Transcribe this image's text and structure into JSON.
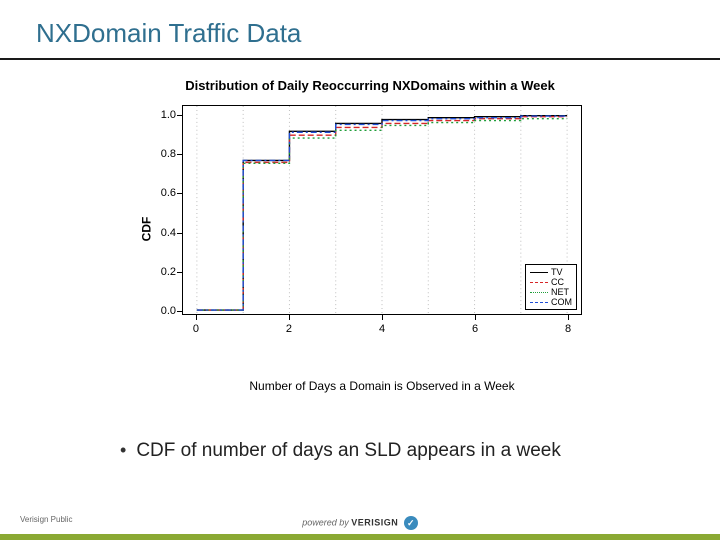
{
  "title": "NXDomain Traffic Data",
  "bullet": "CDF of number of days an SLD appears in a week",
  "footer": {
    "left": "Verisign Public",
    "powered": "powered by",
    "brand": "VERISIGN",
    "badge": "✓"
  },
  "chart": {
    "type": "line-step",
    "title": "Distribution of Daily Reoccurring NXDomains within a Week",
    "xlabel": "Number of Days a Domain is Observed in a Week",
    "ylabel": "CDF",
    "xlim": [
      -0.3,
      8.3
    ],
    "ylim": [
      -0.02,
      1.05
    ],
    "xticks": [
      0,
      2,
      4,
      6,
      8
    ],
    "yticks": [
      0.0,
      0.2,
      0.4,
      0.6,
      0.8,
      1.0
    ],
    "ytick_labels": [
      "0.0",
      "0.2",
      "0.4",
      "0.6",
      "0.8",
      "1.0"
    ],
    "grid": {
      "vertical_at": [
        0,
        1,
        2,
        3,
        4,
        5,
        6,
        7,
        8
      ],
      "color": "#bfbfbf",
      "dash": "1,3"
    },
    "background_color": "#ffffff",
    "border_color": "#000000",
    "title_fontsize": 13,
    "label_fontsize": 12,
    "tick_fontsize": 11,
    "series": [
      {
        "name": "TV",
        "color": "#000000",
        "dash": "",
        "points": [
          [
            0,
            0.0
          ],
          [
            1,
            0.0
          ],
          [
            1,
            0.77
          ],
          [
            2,
            0.77
          ],
          [
            2,
            0.92
          ],
          [
            3,
            0.92
          ],
          [
            3,
            0.96
          ],
          [
            4,
            0.96
          ],
          [
            4,
            0.98
          ],
          [
            5,
            0.98
          ],
          [
            5,
            0.99
          ],
          [
            6,
            0.99
          ],
          [
            6,
            0.995
          ],
          [
            7,
            0.995
          ],
          [
            7,
            1.0
          ],
          [
            8,
            1.0
          ]
        ]
      },
      {
        "name": "CC",
        "color": "#d62728",
        "dash": "6,3",
        "points": [
          [
            0,
            0.0
          ],
          [
            1,
            0.0
          ],
          [
            1,
            0.76
          ],
          [
            2,
            0.76
          ],
          [
            2,
            0.9
          ],
          [
            3,
            0.9
          ],
          [
            3,
            0.94
          ],
          [
            4,
            0.94
          ],
          [
            4,
            0.96
          ],
          [
            5,
            0.96
          ],
          [
            5,
            0.975
          ],
          [
            6,
            0.975
          ],
          [
            6,
            0.985
          ],
          [
            7,
            0.985
          ],
          [
            7,
            0.995
          ],
          [
            8,
            0.995
          ]
        ]
      },
      {
        "name": "NET",
        "color": "#1f9e3a",
        "dash": "2,3",
        "points": [
          [
            0,
            0.0
          ],
          [
            1,
            0.0
          ],
          [
            1,
            0.755
          ],
          [
            2,
            0.755
          ],
          [
            2,
            0.885
          ],
          [
            3,
            0.885
          ],
          [
            3,
            0.925
          ],
          [
            4,
            0.925
          ],
          [
            4,
            0.95
          ],
          [
            5,
            0.95
          ],
          [
            5,
            0.965
          ],
          [
            6,
            0.965
          ],
          [
            6,
            0.975
          ],
          [
            7,
            0.975
          ],
          [
            7,
            0.985
          ],
          [
            8,
            0.985
          ]
        ]
      },
      {
        "name": "COM",
        "color": "#1f4fd6",
        "dash": "6,3,2,3",
        "points": [
          [
            0,
            0.0
          ],
          [
            1,
            0.0
          ],
          [
            1,
            0.77
          ],
          [
            2,
            0.77
          ],
          [
            2,
            0.915
          ],
          [
            3,
            0.915
          ],
          [
            3,
            0.955
          ],
          [
            4,
            0.955
          ],
          [
            4,
            0.975
          ],
          [
            5,
            0.975
          ],
          [
            5,
            0.985
          ],
          [
            6,
            0.985
          ],
          [
            6,
            0.99
          ],
          [
            7,
            0.99
          ],
          [
            7,
            0.998
          ],
          [
            8,
            0.998
          ]
        ]
      }
    ],
    "legend_position": "bottom-right"
  },
  "colors": {
    "title": "#2f6f8f",
    "underline": "#1a1a1a",
    "footer_bar": "#8aa933"
  }
}
